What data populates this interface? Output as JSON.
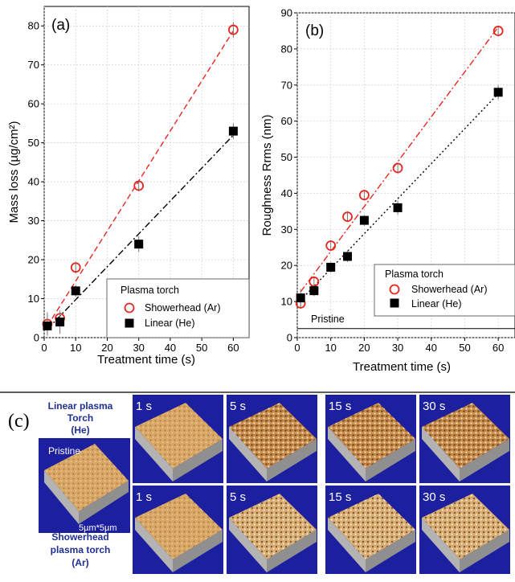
{
  "chart_data": [
    {
      "type": "scatter",
      "panel_label": "(a)",
      "xlabel": "Treatment time (s)",
      "ylabel": "Mass loss (µg/cm²)",
      "xlim": [
        0,
        65
      ],
      "ylim": [
        0,
        85
      ],
      "x_ticks": [
        "0",
        "10",
        "20",
        "30",
        "40",
        "50",
        "60"
      ],
      "y_ticks": [
        "0",
        "10",
        "20",
        "30",
        "40",
        "50",
        "60",
        "70",
        "80"
      ],
      "grid": true,
      "legend_title": "Plasma torch",
      "legend_position": "bottom-right",
      "series": [
        {
          "name": "Showerhead (Ar)",
          "marker": "open-circle",
          "color": "#e8261f",
          "line": "dashed",
          "x": [
            1,
            5,
            10,
            30,
            60
          ],
          "y": [
            3.5,
            5,
            18,
            39,
            79
          ],
          "err": [
            3,
            1.5,
            1.5,
            1.5,
            2
          ]
        },
        {
          "name": "Linear (He)",
          "marker": "filled-square",
          "color": "#000000",
          "line": "dash-dot",
          "x": [
            1,
            5,
            10,
            30,
            60
          ],
          "y": [
            3,
            4,
            12,
            24,
            53
          ],
          "err": [
            2,
            3,
            1.5,
            2,
            2
          ]
        }
      ]
    },
    {
      "type": "scatter",
      "panel_label": "(b)",
      "xlabel": "Treatment time (s)",
      "ylabel": "Roughness Rrms (nm)",
      "xlim": [
        0,
        65
      ],
      "ylim": [
        0,
        90
      ],
      "x_ticks": [
        "0",
        "10",
        "20",
        "30",
        "40",
        "50",
        "60"
      ],
      "y_ticks": [
        "0",
        "10",
        "20",
        "30",
        "40",
        "50",
        "60",
        "70",
        "80",
        "90"
      ],
      "grid": true,
      "legend_title": "Plasma torch",
      "legend_position": "bottom-right",
      "reference_line": {
        "label": "Pristine",
        "y": 2.5
      },
      "series": [
        {
          "name": "Showerhead (Ar)",
          "marker": "open-circle",
          "color": "#e8261f",
          "line": "dash-dot",
          "x": [
            1,
            5,
            10,
            15,
            20,
            30,
            60
          ],
          "y": [
            9.5,
            15.5,
            25.5,
            33.5,
            39.5,
            47,
            85
          ],
          "err": [
            1.5,
            1.5,
            1.5,
            1.5,
            1.5,
            1.5,
            1.5
          ]
        },
        {
          "name": "Linear (He)",
          "marker": "filled-square",
          "color": "#000000",
          "line": "dotted",
          "x": [
            1,
            5,
            10,
            15,
            20,
            30,
            60
          ],
          "y": [
            11,
            13,
            19.5,
            22.5,
            32.5,
            36,
            68
          ],
          "err": [
            2.5,
            1.5,
            1.5,
            1.5,
            1.5,
            2,
            2
          ]
        }
      ]
    }
  ],
  "panel_c": {
    "label": "(c)",
    "pristine_label": "Pristine",
    "pristine_scale": "5µm*5µm",
    "row_top_label": [
      "Linear plasma",
      "Torch",
      "(He)"
    ],
    "row_bottom_label": [
      "Showerhead",
      "plasma torch",
      "(Ar)"
    ],
    "times": [
      "1 s",
      "5 s",
      "15 s",
      "30 s"
    ],
    "colors": {
      "background": "#1c1f9e",
      "surface": "#d9a766",
      "base": "#b3b3b3"
    }
  }
}
